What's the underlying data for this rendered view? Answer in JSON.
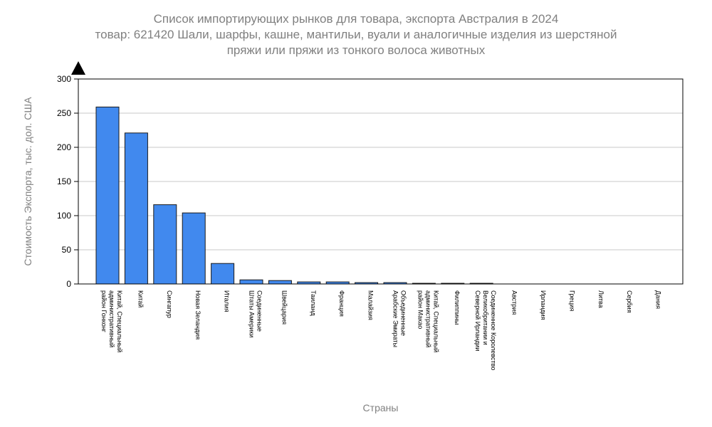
{
  "chart_data": {
    "type": "bar",
    "title_lines": [
      "Список импортирующих рынков для товара, экспорта Австралия в 2024",
      "товар: 621420 Шали, шарфы, кашне, мантильи, вуали и аналогичные изделия из шерстяной",
      "пряжи или пряжи из тонкого волоса животных"
    ],
    "xlabel": "Страны",
    "ylabel": "Стоимость Экспорта, тыс. дол. США",
    "ylim": [
      0,
      300
    ],
    "yticks": [
      0,
      50,
      100,
      150,
      200,
      250,
      300
    ],
    "grid": true,
    "bar_color": "#4189ee",
    "categories": [
      [
        "Китай, Специальный",
        "административный",
        "район Гонконг"
      ],
      [
        "Китай"
      ],
      [
        "Сингапур"
      ],
      [
        "Новая Зеландия"
      ],
      [
        "Италия"
      ],
      [
        "Соединенные",
        "Штаты Америки"
      ],
      [
        "Швейцария"
      ],
      [
        "Таиланд"
      ],
      [
        "Франция"
      ],
      [
        "Малайзия"
      ],
      [
        "Объединенные",
        "Арабские Эмираты"
      ],
      [
        "Китай, Специальный",
        "административный",
        "район Макао"
      ],
      [
        "Филиппины"
      ],
      [
        "Соединенное Королевство",
        "Великобритании и",
        "Северной Ирландии"
      ],
      [
        "Австрия"
      ],
      [
        "Ирландия"
      ],
      [
        "Греция"
      ],
      [
        "Литва"
      ],
      [
        "Сербия"
      ],
      [
        "Дания"
      ]
    ],
    "values": [
      259,
      221,
      116,
      104,
      30,
      6,
      5,
      3,
      3,
      2,
      2,
      1,
      1,
      1,
      0,
      0,
      0,
      0,
      0,
      0
    ]
  }
}
